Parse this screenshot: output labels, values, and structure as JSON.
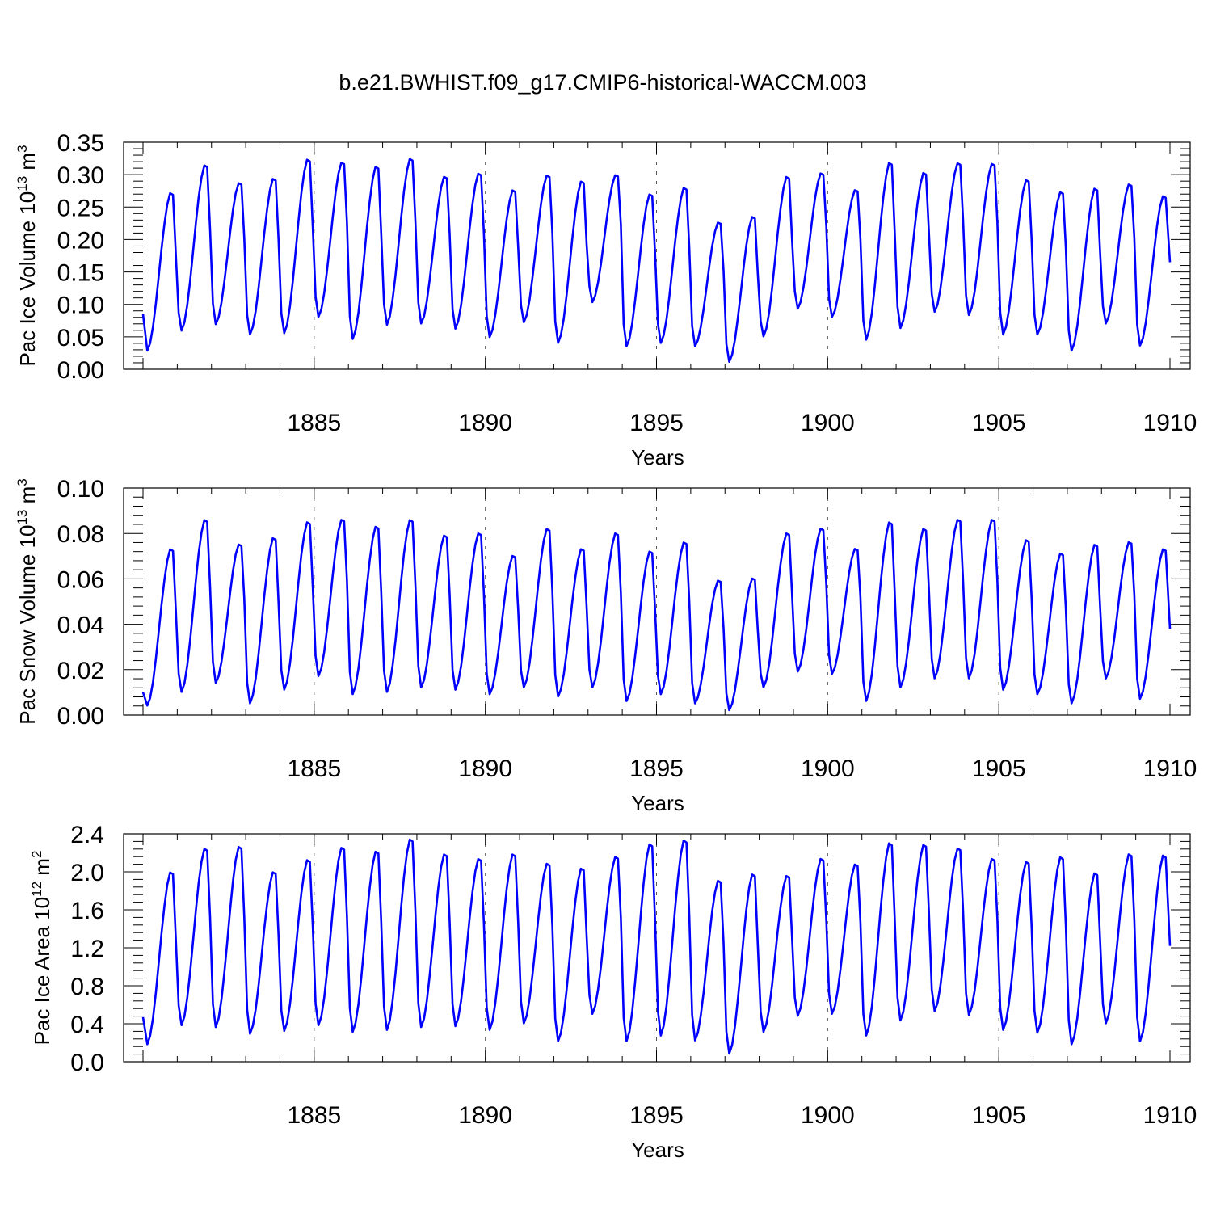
{
  "title": "b.e21.BWHIST.f09_g17.CMIP6-historical-WACCM.003",
  "chart_data": [
    {
      "type": "line",
      "xlabel": "Years",
      "ylabel": "Pac Ice Volume 10",
      "ylabel_exp": "13",
      "ylabel_unit": " m",
      "ylabel_unit_exp": "3",
      "xlim": [
        1880.0,
        1910.0
      ],
      "ylim": [
        0.0,
        0.35
      ],
      "xticks": [
        "1885",
        "1890",
        "1895",
        "1900",
        "1905",
        "1910"
      ],
      "yticks": [
        "0.00",
        "0.05",
        "0.10",
        "0.15",
        "0.20",
        "0.25",
        "0.30",
        "0.35"
      ],
      "line_color": "#0000ff",
      "annual_max": [
        0.275,
        0.318,
        0.29,
        0.297,
        0.327,
        0.322,
        0.316,
        0.328,
        0.3,
        0.305,
        0.279,
        0.302,
        0.293,
        0.302,
        0.273,
        0.283,
        0.229,
        0.238,
        0.3,
        0.305,
        0.279,
        0.322,
        0.306,
        0.321,
        0.32,
        0.295,
        0.276,
        0.282,
        0.288,
        0.27
      ],
      "annual_min": [
        0.028,
        0.059,
        0.069,
        0.053,
        0.055,
        0.08,
        0.046,
        0.068,
        0.07,
        0.062,
        0.049,
        0.072,
        0.04,
        0.103,
        0.035,
        0.04,
        0.035,
        0.011,
        0.05,
        0.093,
        0.08,
        0.045,
        0.063,
        0.088,
        0.083,
        0.053,
        0.053,
        0.028,
        0.07,
        0.036
      ],
      "start_value": 0.085,
      "end_value": 0.165
    },
    {
      "type": "line",
      "xlabel": "Years",
      "ylabel": "Pac Snow Volume 10",
      "ylabel_exp": "13",
      "ylabel_unit": " m",
      "ylabel_unit_exp": "3",
      "xlim": [
        1880.0,
        1910.0
      ],
      "ylim": [
        0.0,
        0.1
      ],
      "xticks": [
        "1885",
        "1890",
        "1895",
        "1900",
        "1905",
        "1910"
      ],
      "yticks": [
        "0.00",
        "0.02",
        "0.04",
        "0.06",
        "0.08",
        "0.10"
      ],
      "line_color": "#0000ff",
      "annual_max": [
        0.074,
        0.087,
        0.076,
        0.079,
        0.086,
        0.087,
        0.084,
        0.087,
        0.08,
        0.081,
        0.071,
        0.083,
        0.074,
        0.081,
        0.073,
        0.077,
        0.06,
        0.061,
        0.081,
        0.083,
        0.074,
        0.086,
        0.083,
        0.087,
        0.087,
        0.078,
        0.072,
        0.076,
        0.077,
        0.074
      ],
      "annual_min": [
        0.004,
        0.01,
        0.014,
        0.005,
        0.011,
        0.017,
        0.009,
        0.01,
        0.012,
        0.011,
        0.009,
        0.012,
        0.008,
        0.012,
        0.006,
        0.009,
        0.005,
        0.002,
        0.012,
        0.019,
        0.018,
        0.006,
        0.012,
        0.016,
        0.016,
        0.011,
        0.009,
        0.005,
        0.016,
        0.007
      ],
      "start_value": 0.01,
      "end_value": 0.038
    },
    {
      "type": "line",
      "xlabel": "Years",
      "ylabel": "Pac Ice Area 10",
      "ylabel_exp": "12",
      "ylabel_unit": " m",
      "ylabel_unit_exp": "2",
      "xlim": [
        1880.0,
        1910.0
      ],
      "ylim": [
        0.0,
        2.4
      ],
      "xticks": [
        "1885",
        "1890",
        "1895",
        "1900",
        "1905",
        "1910"
      ],
      "yticks": [
        "0.0",
        "0.4",
        "0.8",
        "1.2",
        "1.6",
        "2.0",
        "2.4"
      ],
      "line_color": "#0000ff",
      "annual_max": [
        2.02,
        2.27,
        2.29,
        2.02,
        2.15,
        2.28,
        2.24,
        2.37,
        2.21,
        2.16,
        2.21,
        2.11,
        2.06,
        2.18,
        2.32,
        2.36,
        1.93,
        2.0,
        1.98,
        2.16,
        2.1,
        2.33,
        2.31,
        2.27,
        2.16,
        2.13,
        2.18,
        2.01,
        2.21,
        2.2
      ],
      "annual_min": [
        0.18,
        0.38,
        0.36,
        0.29,
        0.32,
        0.38,
        0.31,
        0.33,
        0.36,
        0.37,
        0.33,
        0.4,
        0.21,
        0.5,
        0.21,
        0.27,
        0.22,
        0.08,
        0.31,
        0.48,
        0.5,
        0.27,
        0.43,
        0.53,
        0.49,
        0.33,
        0.3,
        0.18,
        0.4,
        0.21
      ],
      "start_value": 0.47,
      "end_value": 1.22
    }
  ]
}
